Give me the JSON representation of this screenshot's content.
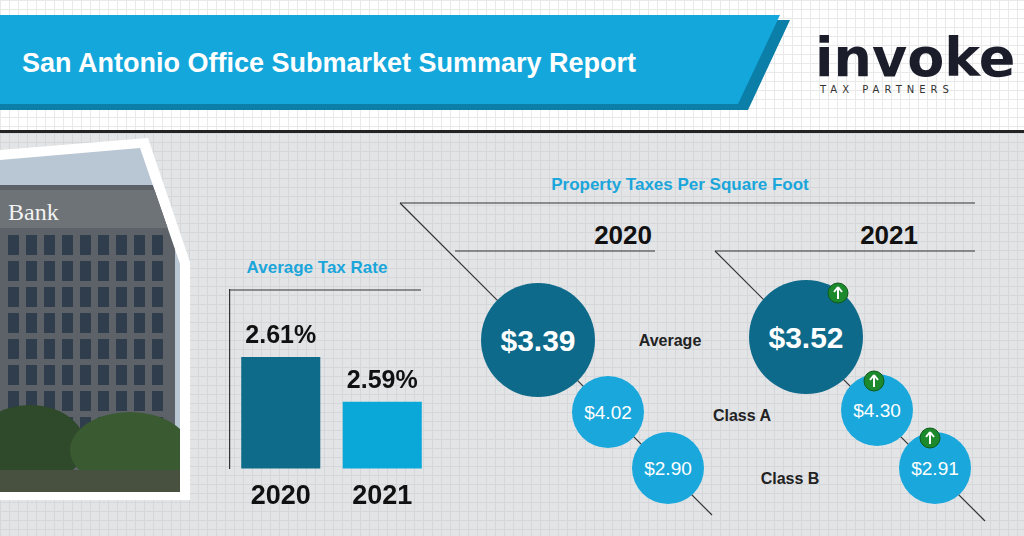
{
  "header": {
    "title": "San Antonio Office Submarket Summary Report",
    "logo": "invoke",
    "logo_tagline": "TAX PARTNERS"
  },
  "photo": {
    "sign": "Bank"
  },
  "chart_data": {
    "type": "bar",
    "title": "Average Tax Rate",
    "categories": [
      "2020",
      "2021"
    ],
    "values": [
      2.61,
      2.59
    ],
    "value_labels": [
      "2.61%",
      "2.59%"
    ],
    "colors": [
      "#0f6b8a",
      "#0aa8d8"
    ],
    "ylim": [
      2.56,
      2.64
    ],
    "grid": false,
    "data_labels": true,
    "tick_labels": "x"
  },
  "property_taxes": {
    "title": "Property Taxes Per Square Foot",
    "rows": [
      "Average",
      "Class A",
      "Class B"
    ],
    "columns": [
      {
        "year": "2020",
        "values": [
          {
            "value": 3.39,
            "label": "$3.39"
          },
          {
            "value": 4.02,
            "label": "$4.02"
          },
          {
            "value": 2.9,
            "label": "$2.90"
          }
        ]
      },
      {
        "year": "2021",
        "values": [
          {
            "value": 3.52,
            "label": "$3.52"
          },
          {
            "value": 4.3,
            "label": "$4.30"
          },
          {
            "value": 2.91,
            "label": "$2.91"
          }
        ]
      }
    ]
  }
}
